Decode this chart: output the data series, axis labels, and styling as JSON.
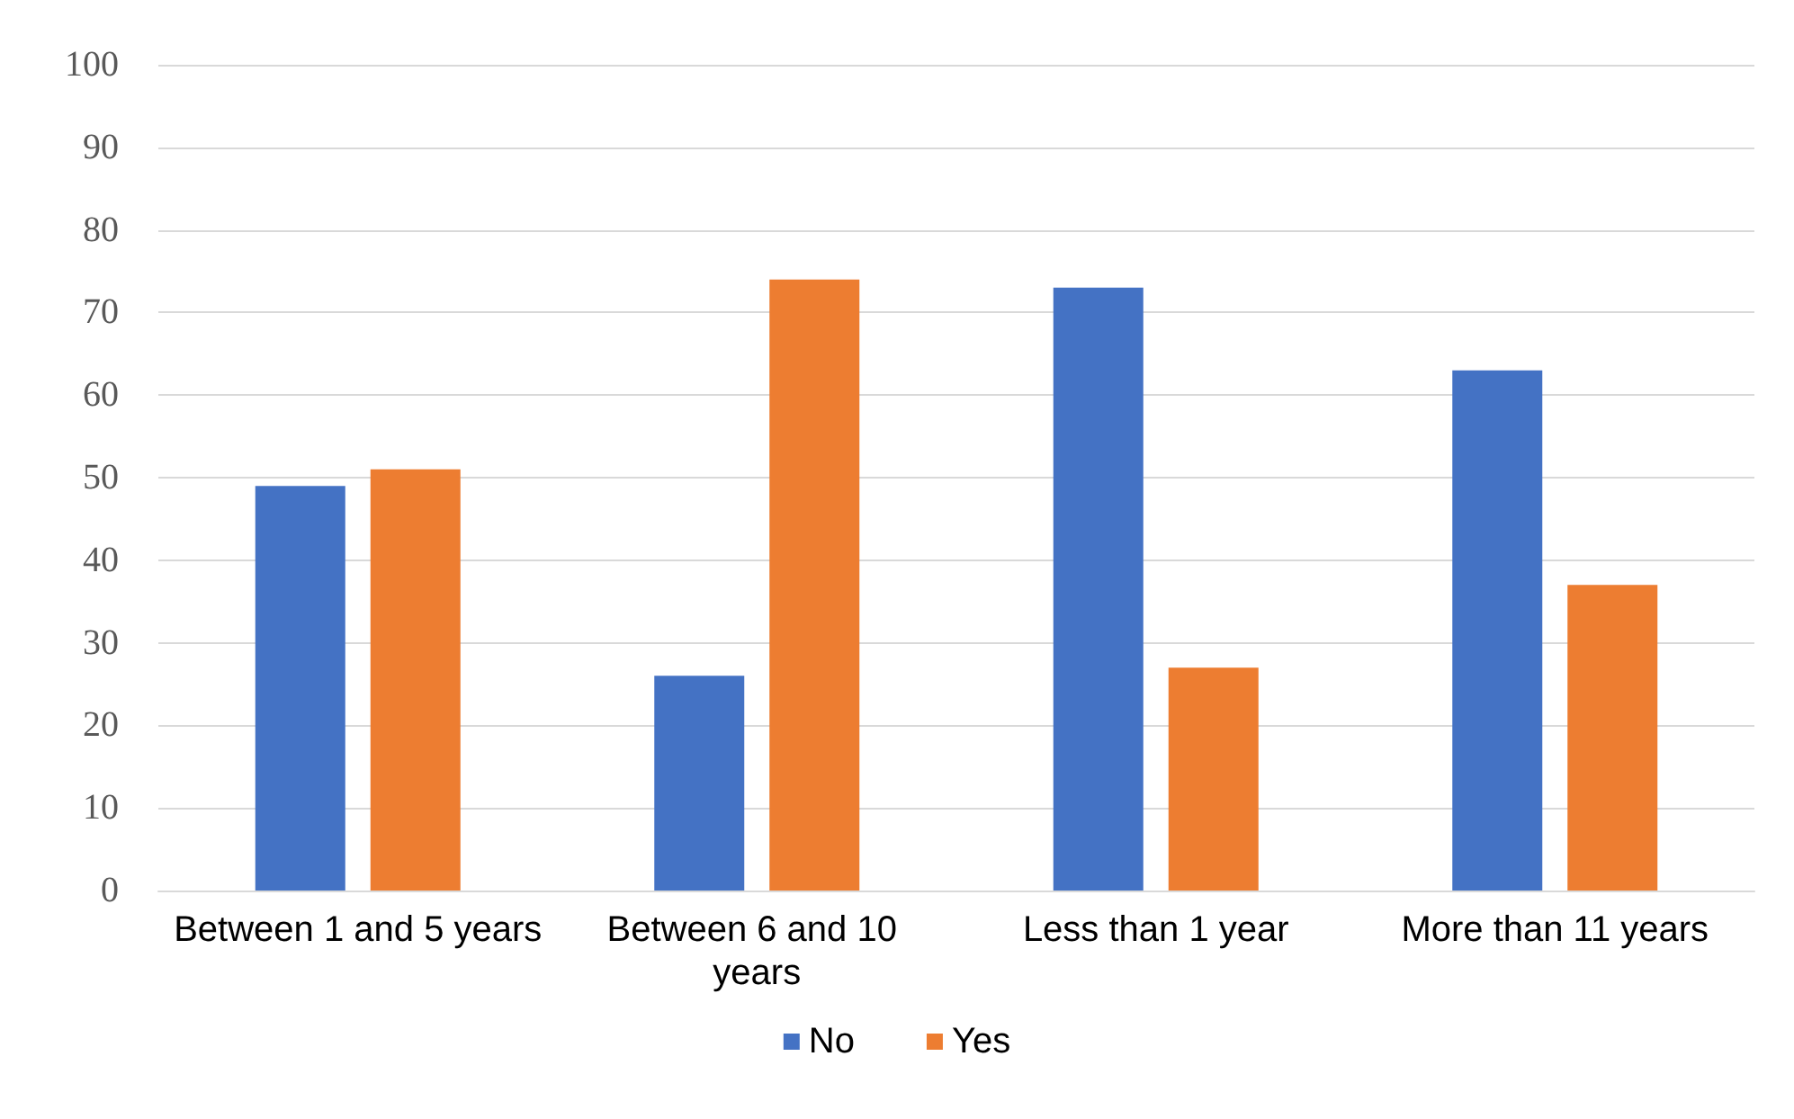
{
  "chart_data": {
    "type": "bar",
    "categories": [
      "Between 1 and 5 years",
      "Between 6 and 10 years",
      "Less than 1 year",
      "More than 11 years"
    ],
    "series": [
      {
        "name": "No",
        "color": "#4472c4",
        "values": [
          49,
          26,
          73,
          63
        ]
      },
      {
        "name": "Yes",
        "color": "#ed7d31",
        "values": [
          51,
          74,
          27,
          37
        ]
      }
    ],
    "ylim": [
      0,
      100
    ],
    "yticks": [
      0,
      10,
      20,
      30,
      40,
      50,
      60,
      70,
      80,
      90,
      100
    ],
    "grid": "y",
    "legend": "bottom"
  }
}
